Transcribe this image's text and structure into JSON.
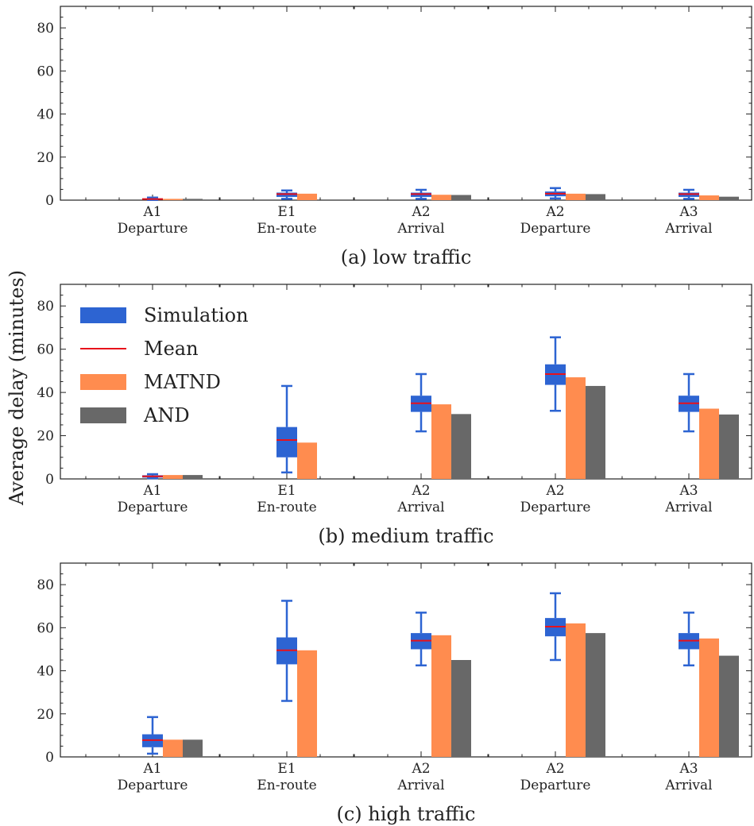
{
  "figure": {
    "ylabel": "Average delay (minutes)",
    "legend": {
      "placement": "top-left of panel (b)",
      "items": [
        {
          "key": "simulation",
          "label": "Simulation"
        },
        {
          "key": "mean",
          "label": "Mean"
        },
        {
          "key": "matnd",
          "label": "MATND"
        },
        {
          "key": "and",
          "label": "AND"
        }
      ]
    }
  },
  "colors": {
    "simulation": "#2d64d2",
    "mean": "#e8111b",
    "matnd": "#ff8c4f",
    "and": "#686868",
    "axis": "#222222"
  },
  "chart_data": [
    {
      "type": "bar",
      "caption": "(a) low traffic",
      "ylim": [
        0,
        90
      ],
      "yticks": [
        0,
        20,
        40,
        60,
        80
      ],
      "categories": [
        {
          "line1": "A1",
          "line2": "Departure"
        },
        {
          "line1": "E1",
          "line2": "En-route"
        },
        {
          "line1": "A2",
          "line2": "Arrival"
        },
        {
          "line1": "A2",
          "line2": "Departure"
        },
        {
          "line1": "A3",
          "line2": "Arrival"
        }
      ],
      "simulation_box": [
        {
          "whislo": 0.1,
          "q1": 0.2,
          "mean": 0.5,
          "q3": 0.8,
          "whishi": 1.2
        },
        {
          "whislo": 0.6,
          "q1": 1.5,
          "mean": 2.8,
          "q3": 3.5,
          "whishi": 4.5
        },
        {
          "whislo": 0.6,
          "q1": 1.5,
          "mean": 2.8,
          "q3": 3.5,
          "whishi": 4.8
        },
        {
          "whislo": 0.8,
          "q1": 1.8,
          "mean": 3.0,
          "q3": 4.0,
          "whishi": 5.6
        },
        {
          "whislo": 0.6,
          "q1": 1.5,
          "mean": 2.8,
          "q3": 3.5,
          "whishi": 4.8
        }
      ],
      "series": [
        {
          "key": "matnd",
          "name": "MATND",
          "values": [
            0.6,
            3.0,
            2.5,
            3.0,
            2.2
          ]
        },
        {
          "key": "and",
          "name": "AND",
          "values": [
            0.6,
            0,
            2.4,
            2.8,
            1.6
          ]
        }
      ]
    },
    {
      "type": "bar",
      "caption": "(b) medium traffic",
      "ylim": [
        0,
        90
      ],
      "yticks": [
        0,
        20,
        40,
        60,
        80
      ],
      "categories": [
        {
          "line1": "A1",
          "line2": "Departure"
        },
        {
          "line1": "E1",
          "line2": "En-route"
        },
        {
          "line1": "A2",
          "line2": "Arrival"
        },
        {
          "line1": "A2",
          "line2": "Departure"
        },
        {
          "line1": "A3",
          "line2": "Arrival"
        }
      ],
      "simulation_box": [
        {
          "whislo": 0.3,
          "q1": 0.6,
          "mean": 1.2,
          "q3": 1.7,
          "whishi": 2.2
        },
        {
          "whislo": 3.0,
          "q1": 10.0,
          "mean": 18.0,
          "q3": 24.0,
          "whishi": 43.0
        },
        {
          "whislo": 22.0,
          "q1": 31.0,
          "mean": 35.0,
          "q3": 38.5,
          "whishi": 48.5
        },
        {
          "whislo": 31.5,
          "q1": 43.5,
          "mean": 48.5,
          "q3": 53.0,
          "whishi": 65.5
        },
        {
          "whislo": 22.0,
          "q1": 31.0,
          "mean": 35.0,
          "q3": 38.5,
          "whishi": 48.5
        }
      ],
      "series": [
        {
          "key": "matnd",
          "name": "MATND",
          "values": [
            1.8,
            16.8,
            34.5,
            47.0,
            32.5
          ]
        },
        {
          "key": "and",
          "name": "AND",
          "values": [
            1.8,
            0,
            30.0,
            43.0,
            29.8
          ]
        }
      ]
    },
    {
      "type": "bar",
      "caption": "(c) high traffic",
      "ylim": [
        0,
        90
      ],
      "yticks": [
        0,
        20,
        40,
        60,
        80
      ],
      "categories": [
        {
          "line1": "A1",
          "line2": "Departure"
        },
        {
          "line1": "E1",
          "line2": "En-route"
        },
        {
          "line1": "A2",
          "line2": "Arrival"
        },
        {
          "line1": "A2",
          "line2": "Departure"
        },
        {
          "line1": "A3",
          "line2": "Arrival"
        }
      ],
      "simulation_box": [
        {
          "whislo": 1.5,
          "q1": 4.5,
          "mean": 7.8,
          "q3": 10.5,
          "whishi": 18.5
        },
        {
          "whislo": 26.0,
          "q1": 43.0,
          "mean": 49.5,
          "q3": 55.5,
          "whishi": 72.5
        },
        {
          "whislo": 42.5,
          "q1": 50.0,
          "mean": 54.0,
          "q3": 57.5,
          "whishi": 67.0
        },
        {
          "whislo": 45.0,
          "q1": 56.0,
          "mean": 60.5,
          "q3": 64.5,
          "whishi": 76.0
        },
        {
          "whislo": 42.5,
          "q1": 50.0,
          "mean": 54.0,
          "q3": 57.5,
          "whishi": 67.0
        }
      ],
      "series": [
        {
          "key": "matnd",
          "name": "MATND",
          "values": [
            8.0,
            49.5,
            56.5,
            62.0,
            55.0
          ]
        },
        {
          "key": "and",
          "name": "AND",
          "values": [
            8.0,
            0,
            45.0,
            57.5,
            47.0
          ]
        }
      ]
    }
  ]
}
